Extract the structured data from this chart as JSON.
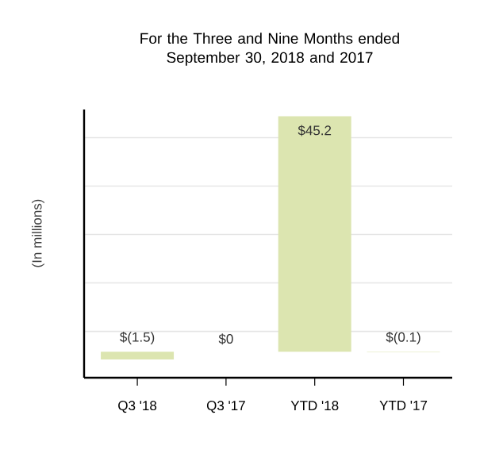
{
  "chart_data": {
    "type": "bar",
    "title": "For the Three and Nine Months ended\nSeptember 30, 2018 and 2017",
    "ylabel": "(In millions)",
    "categories": [
      "Q3 '18",
      "Q3 '17",
      "YTD '18",
      "YTD '17"
    ],
    "values": [
      -1.5,
      0,
      45.2,
      -0.1
    ],
    "value_labels": [
      "$(1.5)",
      "$0",
      "$45.2",
      "$(0.1)"
    ],
    "color": "#dce5b0",
    "ylim": [
      -5,
      46.5
    ],
    "yticks": [
      {
        "value": 3.9,
        "label": null
      },
      {
        "value": 13.2,
        "label": null
      },
      {
        "value": 22.5,
        "label": null
      },
      {
        "value": 31.8,
        "label": null
      },
      {
        "value": 41.1,
        "label": null
      }
    ],
    "grid": "y",
    "tick_labels": "x"
  }
}
